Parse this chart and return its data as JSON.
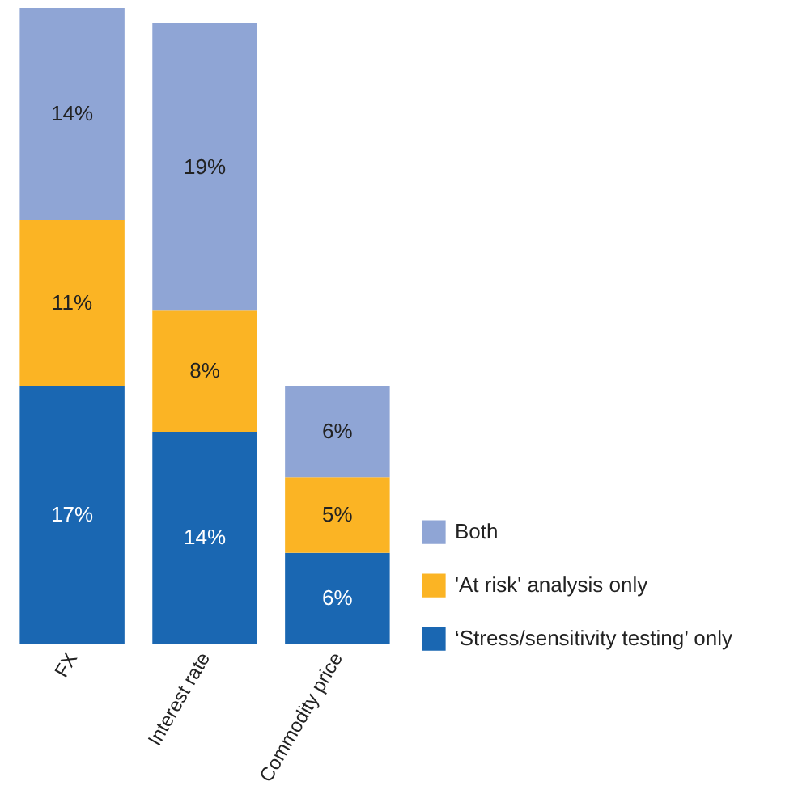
{
  "chart_data": {
    "type": "bar",
    "stacked": true,
    "legend": "bottom right",
    "grid": false,
    "categories": [
      "FX",
      "Interest rate",
      "Commodity price"
    ],
    "series": [
      {
        "name": "‘Stress/sensitivity testing’ only",
        "color": "#1a67b2",
        "values": [
          17,
          14,
          6
        ],
        "value_labels": [
          "17%",
          "14%",
          "6%"
        ]
      },
      {
        "name": "'At risk' analysis only",
        "color": "#fbb424",
        "values": [
          11,
          8,
          5
        ],
        "value_labels": [
          "11%",
          "8%",
          "5%"
        ]
      },
      {
        "name": "Both",
        "color": "#8fa5d5",
        "values": [
          14,
          19,
          6
        ],
        "value_labels": [
          "14%",
          "19%",
          "6%"
        ]
      }
    ]
  }
}
